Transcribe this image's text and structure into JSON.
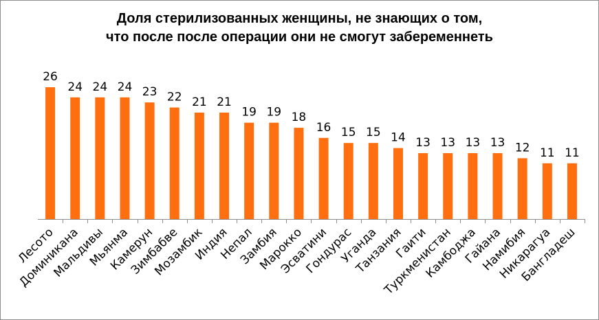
{
  "chart_data": {
    "type": "bar",
    "title_line1": "Доля стерилизованных женщины, не знающих о том,",
    "title_line2": "что после после операции они не смогут забеременнеть",
    "xlabel": "",
    "ylabel": "",
    "ylim": [
      0,
      26
    ],
    "grid": false,
    "bar_color": "#ff6f0f",
    "categories": [
      "Лесото",
      "Доминикана",
      "Мальдивы",
      "Мьянма",
      "Камерун",
      "Зимбабве",
      "Мозамбик",
      "Индия",
      "Непал",
      "Замбия",
      "Марокко",
      "Эсватини",
      "Гондурас",
      "Уганда",
      "Танзания",
      "Гаити",
      "Туркменистан",
      "Камбоджа",
      "Гайана",
      "Намибия",
      "Никарагуа",
      "Бангладеш"
    ],
    "values": [
      26,
      24,
      24,
      24,
      23,
      22,
      21,
      21,
      19,
      19,
      18,
      16,
      15,
      15,
      14,
      13,
      13,
      13,
      13,
      12,
      11,
      11
    ]
  }
}
